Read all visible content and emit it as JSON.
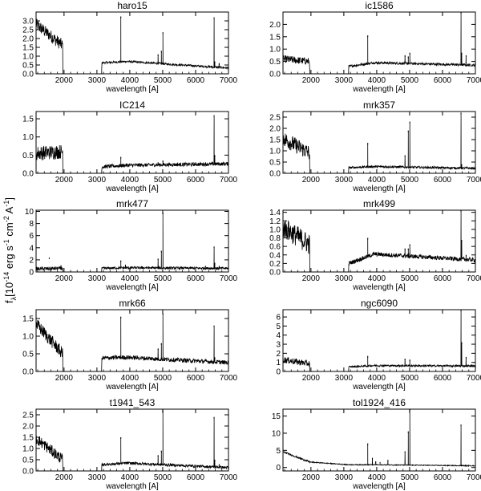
{
  "figure": {
    "ylabel_shared": "f_λ [10⁻¹⁴ erg s⁻¹ cm⁻² A⁻¹]",
    "ylabel_parts": {
      "f": "f",
      "lambda": "λ",
      "bracket": "[10",
      "exp1": "-14",
      "erg": " erg s",
      "exp2": "-1",
      "cm": " cm",
      "exp3": "-2",
      "A": " A",
      "exp4": "-1",
      "close": "]"
    }
  },
  "chart_data": [
    {
      "type": "line",
      "title": "haro15",
      "xlabel": "wavelength [A]",
      "xlim": [
        1150,
        7000
      ],
      "ylim": [
        0,
        3.5
      ],
      "xticks": [
        2000,
        3000,
        4000,
        5000,
        6000,
        7000
      ],
      "yticks": [
        0.0,
        0.5,
        1.0,
        1.5,
        2.0,
        2.5,
        3.0
      ],
      "ytick_labels": [
        "0.0",
        "0.5",
        "1.0",
        "1.5",
        "2.0",
        "2.5",
        "3.0"
      ],
      "uv": {
        "start": 2.8,
        "end": 1.6,
        "noise": 0.35
      },
      "optical": {
        "start": 0.62,
        "peak": 0.7,
        "end": 0.33,
        "noise": 0.06
      },
      "lines": [
        [
          3727,
          3.25
        ],
        [
          4861,
          1.1
        ],
        [
          4959,
          1.3
        ],
        [
          5007,
          2.35
        ],
        [
          6563,
          3.2
        ],
        [
          6584,
          0.7
        ],
        [
          6717,
          0.6
        ]
      ]
    },
    {
      "type": "line",
      "title": "ic1586",
      "xlabel": "wavelength [A]",
      "xlim": [
        1150,
        7000
      ],
      "ylim": [
        0,
        2.5
      ],
      "xticks": [
        2000,
        3000,
        4000,
        5000,
        6000,
        7000
      ],
      "yticks": [
        0.0,
        0.5,
        1.0,
        1.5,
        2.0
      ],
      "ytick_labels": [
        "0.0",
        "0.5",
        "1.0",
        "1.5",
        "2.0"
      ],
      "uv": {
        "start": 0.6,
        "end": 0.5,
        "noise": 0.15
      },
      "optical": {
        "start": 0.3,
        "peak": 0.45,
        "end": 0.35,
        "noise": 0.05
      },
      "lines": [
        [
          3727,
          1.55
        ],
        [
          4861,
          0.75
        ],
        [
          4959,
          0.7
        ],
        [
          5007,
          0.85
        ],
        [
          6563,
          2.5
        ],
        [
          6584,
          0.85
        ],
        [
          6717,
          0.75
        ]
      ]
    },
    {
      "type": "line",
      "title": "IC214",
      "xlabel": "wavelength [A]",
      "xlim": [
        1150,
        7000
      ],
      "ylim": [
        0,
        1.7
      ],
      "xticks": [
        2000,
        3000,
        4000,
        5000,
        6000,
        7000
      ],
      "yticks": [
        0.0,
        0.5,
        1.0,
        1.5
      ],
      "ytick_labels": [
        "0.0",
        "0.5",
        "1.0",
        "1.5"
      ],
      "uv": {
        "start": 0.55,
        "end": 0.6,
        "noise": 0.2
      },
      "optical": {
        "start": 0.18,
        "peak": 0.22,
        "end": 0.26,
        "noise": 0.05
      },
      "lines": [
        [
          3727,
          0.45
        ],
        [
          4861,
          0.3
        ],
        [
          5007,
          0.35
        ],
        [
          6563,
          1.6
        ],
        [
          6584,
          0.5
        ]
      ]
    },
    {
      "type": "line",
      "title": "mrk357",
      "xlabel": "wavelength [A]",
      "xlim": [
        1150,
        7000
      ],
      "ylim": [
        0,
        2.75
      ],
      "xticks": [
        2000,
        3000,
        4000,
        5000,
        6000,
        7000
      ],
      "yticks": [
        0.0,
        0.5,
        1.0,
        1.5,
        2.0,
        2.5
      ],
      "ytick_labels": [
        "0.0",
        "0.5",
        "1.0",
        "1.5",
        "2.0",
        "2.5"
      ],
      "uv": {
        "start": 1.55,
        "end": 0.9,
        "noise": 0.35
      },
      "optical": {
        "start": 0.25,
        "peak": 0.3,
        "end": 0.22,
        "noise": 0.05
      },
      "lines": [
        [
          3727,
          1.35
        ],
        [
          4861,
          0.8
        ],
        [
          4959,
          1.9
        ],
        [
          5007,
          2.3
        ],
        [
          6563,
          2.7
        ],
        [
          6584,
          0.4
        ]
      ]
    },
    {
      "type": "line",
      "title": "mrk477",
      "xlabel": "wavelength [A]",
      "xlim": [
        1150,
        7000
      ],
      "ylim": [
        0,
        10.2
      ],
      "xticks": [
        2000,
        3000,
        4000,
        5000,
        6000,
        7000
      ],
      "yticks": [
        0,
        2,
        4,
        6,
        8,
        10
      ],
      "ytick_labels": [
        "0",
        "2",
        "4",
        "6",
        "8",
        "10"
      ],
      "uv": {
        "start": 0.5,
        "end": 0.6,
        "noise": 0.3
      },
      "optical": {
        "start": 0.6,
        "peak": 0.7,
        "end": 0.6,
        "noise": 0.2
      },
      "lines": [
        [
          1550,
          2.4
        ],
        [
          1909,
          1.1
        ],
        [
          3727,
          1.9
        ],
        [
          3869,
          1.2
        ],
        [
          4363,
          0.8
        ],
        [
          4861,
          2.2
        ],
        [
          4959,
          3.5
        ],
        [
          5007,
          9.8
        ],
        [
          6300,
          1.0
        ],
        [
          6563,
          4.2
        ],
        [
          6584,
          1.5
        ],
        [
          6717,
          1.0
        ]
      ]
    },
    {
      "type": "line",
      "title": "mrk499",
      "xlabel": "wavelength [A]",
      "xlim": [
        1150,
        7000
      ],
      "ylim": [
        0,
        1.45
      ],
      "xticks": [
        2000,
        3000,
        4000,
        5000,
        6000,
        7000
      ],
      "yticks": [
        0.0,
        0.2,
        0.4,
        0.6,
        0.8,
        1.0,
        1.2,
        1.4
      ],
      "ytick_labels": [
        "0.0",
        "0.2",
        "0.4",
        "0.6",
        "0.8",
        "1.0",
        "1.2",
        "1.4"
      ],
      "uv": {
        "start": 1.05,
        "end": 0.65,
        "noise": 0.25
      },
      "optical": {
        "start": 0.2,
        "peak": 0.42,
        "end": 0.28,
        "noise": 0.05
      },
      "lines": [
        [
          3727,
          0.8
        ],
        [
          4861,
          0.55
        ],
        [
          4959,
          0.55
        ],
        [
          5007,
          0.65
        ],
        [
          6563,
          1.45
        ],
        [
          6584,
          0.75
        ],
        [
          6717,
          0.4
        ]
      ]
    },
    {
      "type": "line",
      "title": "mrk66",
      "xlabel": "wavelength [A]",
      "xlim": [
        1150,
        7000
      ],
      "ylim": [
        0,
        1.75
      ],
      "xticks": [
        2000,
        3000,
        4000,
        5000,
        6000,
        7000
      ],
      "yticks": [
        0.0,
        0.5,
        1.0,
        1.5
      ],
      "ytick_labels": [
        "0.0",
        "0.5",
        "1.0",
        "1.5"
      ],
      "uv": {
        "start": 1.35,
        "end": 0.5,
        "noise": 0.18
      },
      "optical": {
        "start": 0.38,
        "peak": 0.4,
        "end": 0.25,
        "noise": 0.06
      },
      "lines": [
        [
          3727,
          1.55
        ],
        [
          4861,
          0.65
        ],
        [
          4959,
          0.8
        ],
        [
          5007,
          1.65
        ],
        [
          6563,
          1.3
        ],
        [
          6584,
          0.4
        ]
      ]
    },
    {
      "type": "line",
      "title": "ngc6090",
      "xlabel": "wavelength [A]",
      "xlim": [
        1150,
        7000
      ],
      "ylim": [
        0,
        6.8
      ],
      "xticks": [
        2000,
        3000,
        4000,
        5000,
        6000,
        7000
      ],
      "yticks": [
        0,
        1,
        2,
        3,
        4,
        5,
        6
      ],
      "ytick_labels": [
        "0",
        "1",
        "2",
        "3",
        "4",
        "5",
        "6"
      ],
      "uv": {
        "start": 1.3,
        "end": 0.85,
        "noise": 0.35
      },
      "optical": {
        "start": 0.5,
        "peak": 0.65,
        "end": 0.6,
        "noise": 0.1
      },
      "lines": [
        [
          3727,
          1.7
        ],
        [
          4861,
          1.4
        ],
        [
          5007,
          1.3
        ],
        [
          6563,
          6.8
        ],
        [
          6584,
          3.2
        ],
        [
          6717,
          1.6
        ]
      ]
    },
    {
      "type": "line",
      "title": "t1941_543",
      "xlabel": "wavelength [A]",
      "xlim": [
        1150,
        7000
      ],
      "ylim": [
        0,
        2.75
      ],
      "xticks": [
        2000,
        3000,
        4000,
        5000,
        6000,
        7000
      ],
      "yticks": [
        0.0,
        0.5,
        1.0,
        1.5,
        2.0,
        2.5
      ],
      "ytick_labels": [
        "0.0",
        "0.5",
        "1.0",
        "1.5",
        "2.0",
        "2.5"
      ],
      "uv": {
        "start": 1.45,
        "end": 0.5,
        "noise": 0.25
      },
      "optical": {
        "start": 0.28,
        "peak": 0.35,
        "end": 0.15,
        "noise": 0.06
      },
      "lines": [
        [
          3727,
          1.5
        ],
        [
          4861,
          0.7
        ],
        [
          4959,
          0.9
        ],
        [
          5007,
          2.7
        ],
        [
          6563,
          2.4
        ],
        [
          6584,
          0.5
        ],
        [
          6717,
          0.3
        ]
      ]
    },
    {
      "type": "line",
      "title": "tol1924_416",
      "xlabel": "wavelength [A]",
      "xlim": [
        1150,
        7000
      ],
      "ylim": [
        -1,
        17
      ],
      "xticks": [
        2000,
        3000,
        4000,
        5000,
        6000,
        7000
      ],
      "yticks": [
        0,
        5,
        10,
        15
      ],
      "ytick_labels": [
        "0",
        "5",
        "10",
        "15"
      ],
      "uv": {
        "start": 4.6,
        "end": 1.6,
        "noise": 0.25
      },
      "optical": {
        "start": 0.8,
        "peak": 0.8,
        "end": 0.5,
        "noise": 0.12
      },
      "continuous": true,
      "lines": [
        [
          3727,
          7.0
        ],
        [
          3869,
          2.8
        ],
        [
          3970,
          1.8
        ],
        [
          4102,
          1.6
        ],
        [
          4340,
          2.2
        ],
        [
          4861,
          4.7
        ],
        [
          4959,
          10.5
        ],
        [
          5007,
          17.0
        ],
        [
          6563,
          12.5
        ],
        [
          6584,
          0.8
        ],
        [
          6717,
          0.7
        ]
      ]
    }
  ]
}
